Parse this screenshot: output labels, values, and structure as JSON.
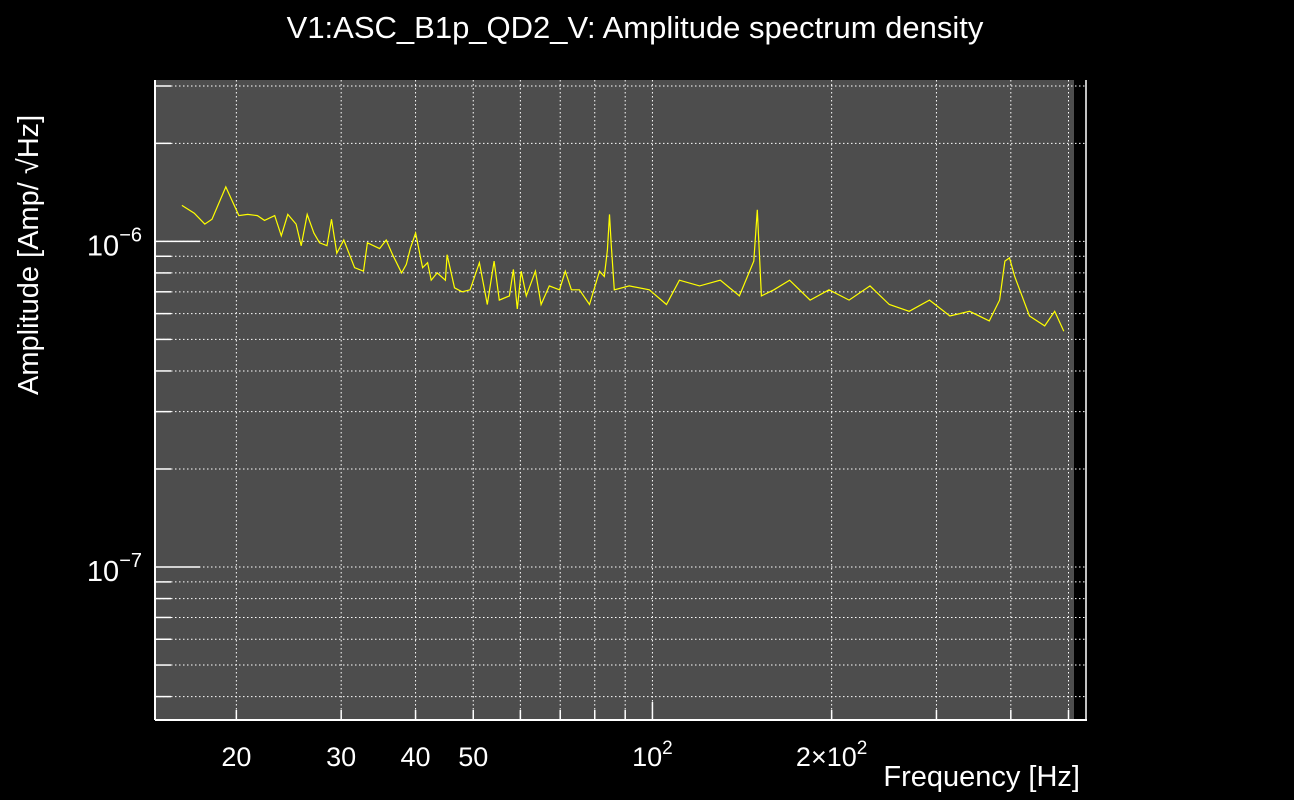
{
  "chart_data": {
    "type": "line",
    "title": "V1:ASC_B1p_QD2_V: Amplitude spectrum density",
    "xlabel": "Frequency [Hz]",
    "ylabel": "Amplitude [Amp/ √Hz]",
    "xscale": "log",
    "yscale": "log",
    "xlim": [
      14.6,
      535
    ],
    "ylim": [
      3.39e-08,
      3.13e-06
    ],
    "grid": true,
    "background_color": "#4d4d4d",
    "line_color": "#ffff00",
    "x_ticks": [
      {
        "value": 20,
        "label": "20"
      },
      {
        "value": 30,
        "label": "30"
      },
      {
        "value": 40,
        "label": "40"
      },
      {
        "value": 50,
        "label": "50"
      },
      {
        "value": 100,
        "label": "10",
        "exp": "2"
      },
      {
        "value": 200,
        "label": "2×10",
        "exp": "2"
      }
    ],
    "y_ticks": [
      {
        "value": 1e-06,
        "label": "10",
        "exp": "−6"
      },
      {
        "value": 1e-07,
        "label": "10",
        "exp": "−7"
      }
    ],
    "series": [
      {
        "name": "V1:ASC_B1p_QD2_V",
        "x": [
          16.2,
          17.0,
          17.7,
          18.2,
          19.2,
          20.2,
          20.9,
          21.7,
          22.3,
          23.2,
          23.8,
          24.4,
          25.2,
          25.7,
          26.3,
          27.0,
          27.6,
          28.4,
          28.9,
          29.5,
          30.3,
          31.6,
          32.7,
          33.2,
          34.0,
          34.8,
          35.7,
          36.6,
          37.9,
          38.6,
          39.2,
          40.0,
          41.1,
          41.9,
          42.5,
          43.5,
          44.9,
          45.2,
          46.5,
          47.9,
          49.4,
          51.2,
          52.8,
          54.2,
          55.3,
          57.5,
          58.4,
          59.3,
          60.2,
          61.4,
          63.6,
          65.0,
          67.1,
          69.8,
          71.4,
          73.1,
          75.4,
          78.4,
          81.5,
          83.0,
          84.0,
          84.7,
          85.3,
          86.3,
          91.4,
          98.8,
          105.6,
          111,
          120,
          130,
          140,
          148,
          150,
          152.4,
          160,
          170,
          184,
          198,
          214,
          232,
          250,
          270,
          292,
          316,
          341,
          368,
          383,
          391,
          398,
          406,
          430,
          456,
          474,
          491
        ],
        "y": [
          1.29e-06,
          1.22e-06,
          1.13e-06,
          1.17e-06,
          1.47e-06,
          1.2e-06,
          1.21e-06,
          1.2e-06,
          1.16e-06,
          1.2e-06,
          1.04e-06,
          1.21e-06,
          1.13e-06,
          9.7e-07,
          1.21e-06,
          1.06e-06,
          9.9e-07,
          9.7e-07,
          1.17e-06,
          9.2e-07,
          1.01e-06,
          8.3e-07,
          8.1e-07,
          9.9e-07,
          9.7e-07,
          9.5e-07,
          1.01e-06,
          9.1e-07,
          8e-07,
          8.5e-07,
          9.5e-07,
          1.06e-06,
          8.3e-07,
          8.6e-07,
          7.6e-07,
          8e-07,
          7.6e-07,
          9.1e-07,
          7.2e-07,
          7e-07,
          7.1e-07,
          8.6e-07,
          6.4e-07,
          8.7e-07,
          6.6e-07,
          6.8e-07,
          8.2e-07,
          6.2e-07,
          8.1e-07,
          6.8e-07,
          8.1e-07,
          6.4e-07,
          7.3e-07,
          7.1e-07,
          8.1e-07,
          7.1e-07,
          7.1e-07,
          6.4e-07,
          8.1e-07,
          7.8e-07,
          9.4e-07,
          1.21e-06,
          9.7e-07,
          7.1e-07,
          7.3e-07,
          7.1e-07,
          6.4e-07,
          7.6e-07,
          7.3e-07,
          7.6e-07,
          6.8e-07,
          8.7e-07,
          1.25e-06,
          6.8e-07,
          7.1e-07,
          7.6e-07,
          6.6e-07,
          7.1e-07,
          6.6e-07,
          7.3e-07,
          6.4e-07,
          6.1e-07,
          6.6e-07,
          5.9e-07,
          6.1e-07,
          5.7e-07,
          6.6e-07,
          8.7e-07,
          8.9e-07,
          7.8e-07,
          5.9e-07,
          5.5e-07,
          6.1e-07,
          5.3e-07
        ]
      }
    ]
  }
}
